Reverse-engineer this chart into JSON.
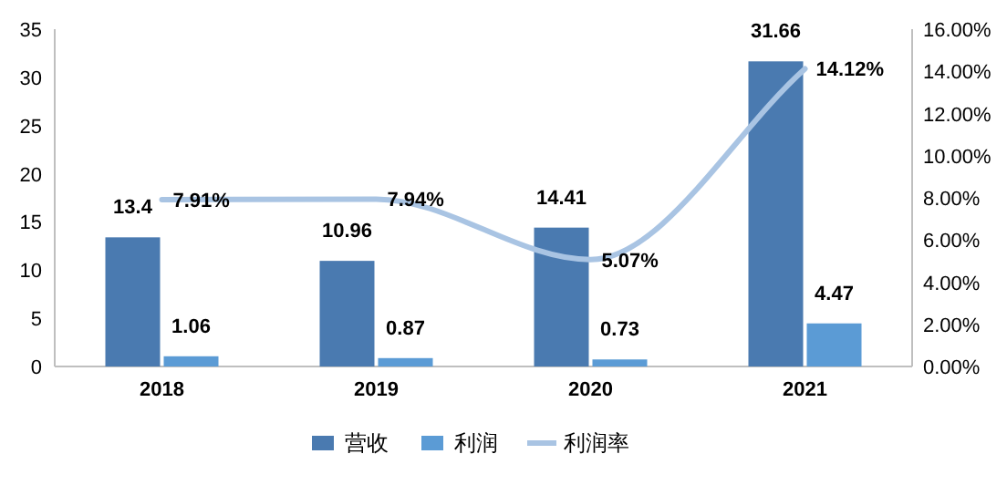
{
  "chart_data": {
    "type": "bar",
    "categories": [
      "2018",
      "2019",
      "2020",
      "2021"
    ],
    "series": [
      {
        "name": "营收",
        "color": "#4a7ab0",
        "values": [
          13.4,
          10.96,
          14.41,
          31.66
        ],
        "value_labels": [
          "13.4",
          "10.96",
          "14.41",
          "31.66"
        ]
      },
      {
        "name": "利润",
        "color": "#5b9bd5",
        "values": [
          1.06,
          0.87,
          0.73,
          4.47
        ],
        "value_labels": [
          "1.06",
          "0.87",
          "0.73",
          "4.47"
        ]
      },
      {
        "name": "利润率",
        "type": "line",
        "axis": "y2",
        "color": "#a9c4e3",
        "values": [
          7.91,
          7.94,
          5.07,
          14.12
        ],
        "value_labels": [
          "7.91%",
          "7.94%",
          "5.07%",
          "14.12%"
        ]
      }
    ],
    "ylim": [
      0,
      35
    ],
    "yticks": [
      0,
      5,
      10,
      15,
      20,
      25,
      30,
      35
    ],
    "y2lim": [
      0,
      16
    ],
    "y2ticks": [
      {
        "value": 0,
        "label": "0.00%"
      },
      {
        "value": 2,
        "label": "2.00%"
      },
      {
        "value": 4,
        "label": "4.00%"
      },
      {
        "value": 6,
        "label": "6.00%"
      },
      {
        "value": 8,
        "label": "8.00%"
      },
      {
        "value": 10,
        "label": "10.00%"
      },
      {
        "value": 12,
        "label": "12.00%"
      },
      {
        "value": 14,
        "label": "14.00%"
      },
      {
        "value": 16,
        "label": "16.00%"
      }
    ],
    "grid": false,
    "legend": "bottom",
    "marker": "none"
  }
}
